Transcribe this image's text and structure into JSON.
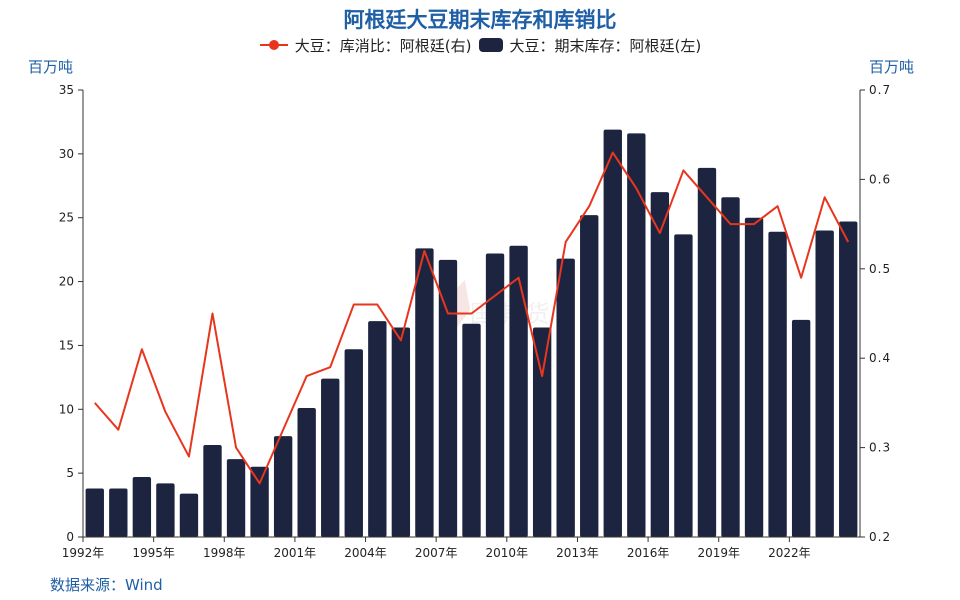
{
  "title": "阿根廷大豆期末库存和库销比",
  "legend": {
    "line_label": "大豆：库消比：阿根廷(右)",
    "bar_label": "大豆：期末库存：阿根廷(左)"
  },
  "left_unit": "百万吨",
  "right_unit": "百万吨",
  "source": "数据来源：Wind",
  "colors": {
    "bar": "#1d2440",
    "line": "#e8361e",
    "title": "#1f5fa6"
  },
  "chart_data": {
    "type": "bar",
    "title": "阿根廷大豆期末库存和库销比",
    "categories": [
      "1992",
      "1993",
      "1994",
      "1995",
      "1996",
      "1997",
      "1998",
      "1999",
      "2000",
      "2001",
      "2002",
      "2003",
      "2004",
      "2005",
      "2006",
      "2007",
      "2008",
      "2009",
      "2010",
      "2011",
      "2012",
      "2013",
      "2014",
      "2015",
      "2016",
      "2017",
      "2018",
      "2019",
      "2020",
      "2021",
      "2022",
      "2023",
      "2024"
    ],
    "x_tick_labels": [
      "1992年",
      "1995年",
      "1998年",
      "2001年",
      "2004年",
      "2007年",
      "2010年",
      "2013年",
      "2016年",
      "2019年",
      "2022年"
    ],
    "series": [
      {
        "name": "大豆：期末库存：阿根廷(左)",
        "type": "bar",
        "axis": "left",
        "values": [
          3.8,
          3.8,
          4.7,
          4.2,
          3.4,
          7.2,
          6.1,
          5.5,
          7.9,
          10.1,
          12.4,
          14.7,
          16.9,
          16.4,
          22.6,
          21.7,
          16.7,
          22.2,
          22.8,
          16.4,
          21.8,
          25.2,
          31.9,
          31.6,
          27.0,
          23.7,
          28.9,
          26.6,
          25.0,
          23.9,
          17.0,
          24.0,
          24.7
        ]
      },
      {
        "name": "大豆：库消比：阿根廷(右)",
        "type": "line",
        "axis": "right",
        "values": [
          0.35,
          0.32,
          0.41,
          0.34,
          0.29,
          0.45,
          0.3,
          0.26,
          0.32,
          0.38,
          0.39,
          0.46,
          0.46,
          0.42,
          0.52,
          0.45,
          0.45,
          0.47,
          0.49,
          0.38,
          0.53,
          0.57,
          0.63,
          0.59,
          0.54,
          0.61,
          0.58,
          0.55,
          0.55,
          0.57,
          0.49,
          0.58,
          0.53
        ]
      }
    ],
    "y_left": {
      "min": 0,
      "max": 35,
      "ticks": [
        "0",
        "5",
        "10",
        "15",
        "20",
        "25",
        "30",
        "35"
      ]
    },
    "y_right": {
      "min": 0.2,
      "max": 0.7,
      "ticks": [
        "0.2",
        "0.3",
        "0.4",
        "0.5",
        "0.6",
        "0.7"
      ]
    },
    "grid": false,
    "legend_position": "top"
  }
}
